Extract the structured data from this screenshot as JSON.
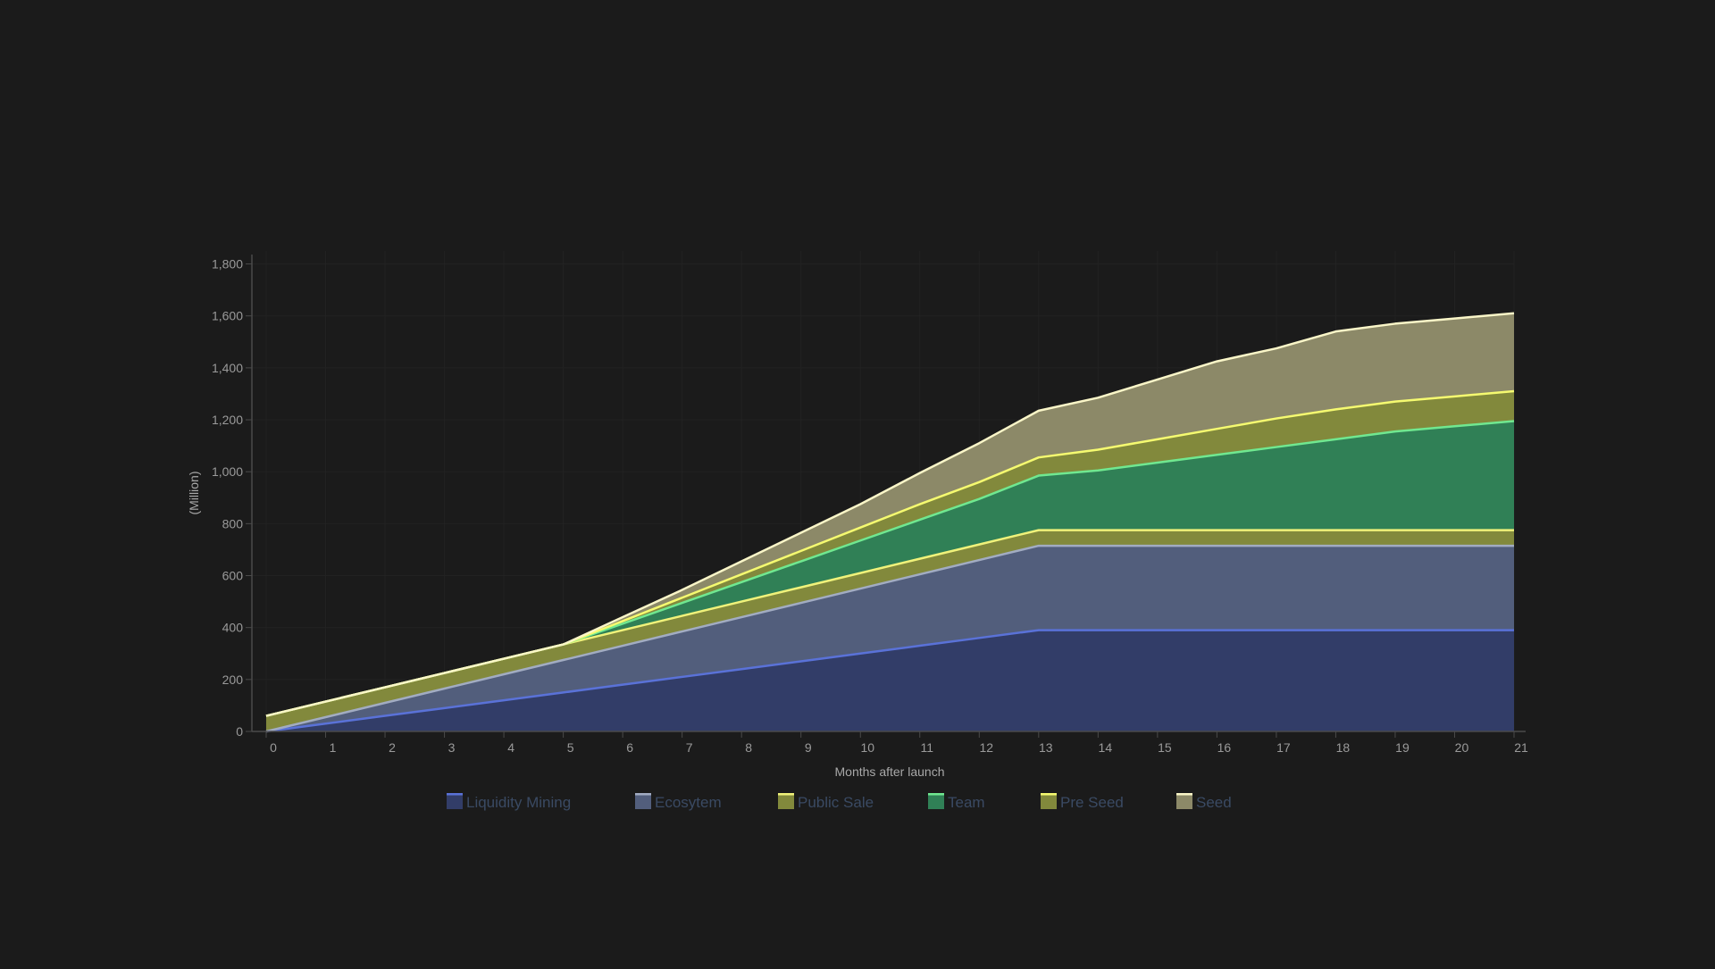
{
  "chart_data": {
    "type": "area",
    "stacked": true,
    "xlabel": "Months after launch",
    "ylabel": "(Million)",
    "ylim": [
      0,
      1850
    ],
    "yticks": [
      0,
      200,
      400,
      600,
      800,
      1000,
      1200,
      1400,
      1600,
      1800
    ],
    "ytick_labels": [
      "0",
      "200",
      "400",
      "600",
      "800",
      "1,000",
      "1,200",
      "1,400",
      "1,600",
      "1,800"
    ],
    "x": [
      0,
      1,
      2,
      3,
      4,
      5,
      6,
      7,
      8,
      9,
      10,
      11,
      12,
      13,
      14,
      15,
      16,
      17,
      18,
      19,
      20,
      21
    ],
    "x_tick_labels": [
      "0",
      "1",
      "2",
      "3",
      "4",
      "5",
      "6",
      "7",
      "8",
      "9",
      "10",
      "11",
      "12",
      "13",
      "14",
      "15",
      "16",
      "17",
      "18",
      "19",
      "20",
      "21"
    ],
    "grid": true,
    "legend_position": "bottom",
    "series": [
      {
        "name": "Liquidity Mining",
        "color": "#323d68",
        "line_color": "#5a72d8",
        "values": [
          0,
          30,
          60,
          90,
          120,
          150,
          180,
          210,
          240,
          270,
          300,
          330,
          360,
          390,
          390,
          390,
          390,
          390,
          390,
          390,
          390,
          390
        ]
      },
      {
        "name": "Ecosytem",
        "color": "#525e7c",
        "line_color": "#a2acc2",
        "values": [
          0,
          25,
          50,
          75,
          100,
          125,
          150,
          175,
          200,
          225,
          250,
          275,
          300,
          325,
          325,
          325,
          325,
          325,
          325,
          325,
          325,
          325
        ]
      },
      {
        "name": "Public Sale",
        "color": "#82893c",
        "line_color": "#f0f27a",
        "values": [
          60,
          60,
          60,
          60,
          60,
          60,
          60,
          60,
          60,
          60,
          60,
          60,
          60,
          60,
          60,
          60,
          60,
          60,
          60,
          60,
          60,
          60
        ]
      },
      {
        "name": "Team",
        "color": "#308056",
        "line_color": "#70e890",
        "values": [
          0,
          0,
          0,
          0,
          0,
          0,
          25,
          50,
          75,
          100,
          125,
          150,
          175,
          210,
          230,
          260,
          290,
          320,
          350,
          380,
          400,
          420
        ]
      },
      {
        "name": "Pre Seed",
        "color": "#82893c",
        "line_color": "#f5fa70",
        "values": [
          0,
          0,
          0,
          0,
          0,
          0,
          10,
          20,
          30,
          40,
          50,
          60,
          65,
          70,
          80,
          90,
          100,
          110,
          115,
          115,
          115,
          115
        ]
      },
      {
        "name": "Seed",
        "color": "#8c8968",
        "line_color": "#faf6c8",
        "values": [
          0,
          0,
          0,
          0,
          0,
          0,
          15,
          30,
          50,
          70,
          90,
          120,
          150,
          180,
          200,
          230,
          260,
          270,
          300,
          300,
          300,
          300
        ]
      }
    ]
  }
}
